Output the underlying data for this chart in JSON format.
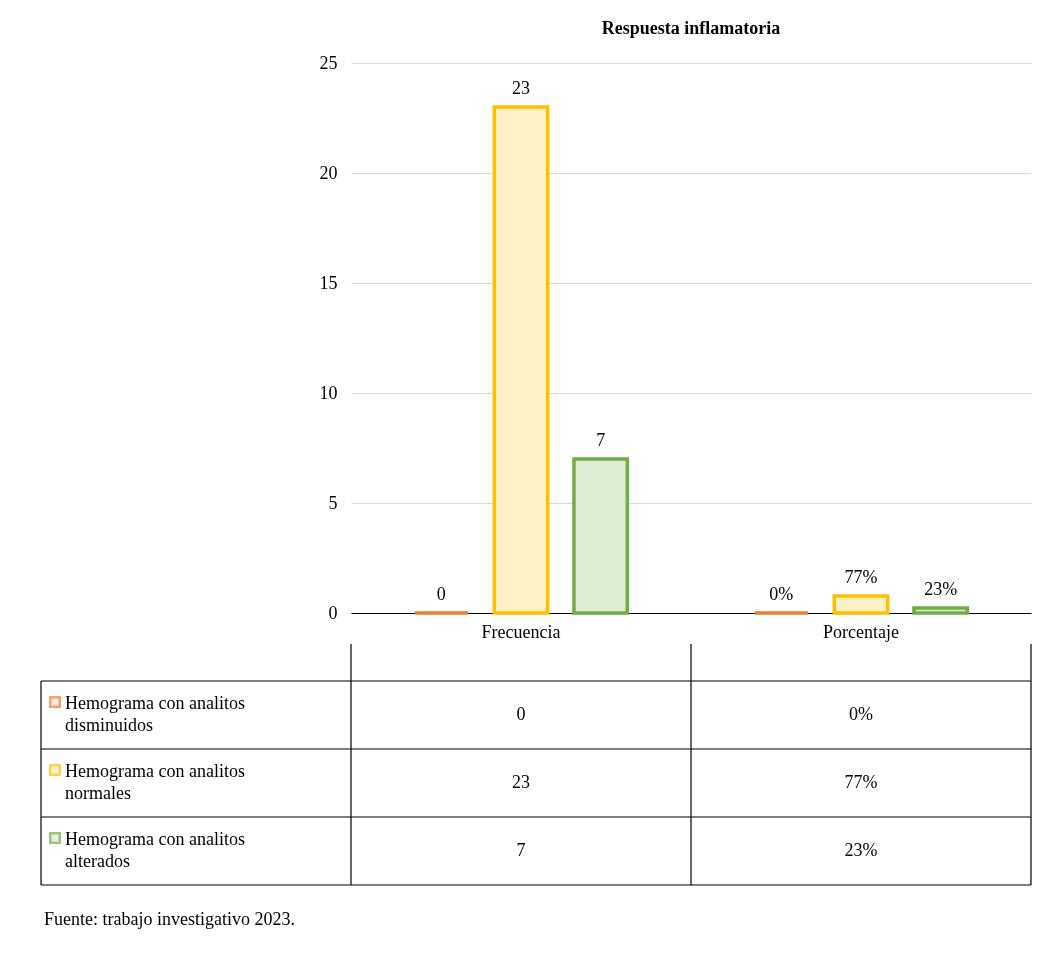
{
  "chart_data": {
    "type": "bar",
    "title": "Respuesta inflamatoria",
    "categories": [
      "Frecuencia",
      "Porcentaje"
    ],
    "series": [
      {
        "name": "Hemograma con analitos disminuidos",
        "color": "#ed7d31",
        "values": [
          0,
          0
        ],
        "value_labels": [
          "0",
          "0%"
        ]
      },
      {
        "name": "Hemograma con analitos normales",
        "color": "#ffc000",
        "values": [
          23,
          0.77
        ],
        "value_labels": [
          "23",
          "77%"
        ]
      },
      {
        "name": "Hemograma con analitos alterados",
        "color": "#70ad47",
        "values": [
          7,
          0.23
        ],
        "value_labels": [
          "7",
          "23%"
        ]
      }
    ],
    "ylim": [
      0,
      25
    ],
    "yticks": [
      0,
      5,
      10,
      15,
      20,
      25
    ],
    "grid": "y",
    "legend": "bottom",
    "annotations": [
      "Fuente: trabajo investigativo 2023."
    ]
  }
}
